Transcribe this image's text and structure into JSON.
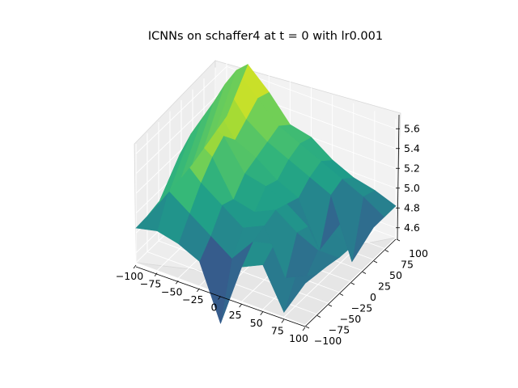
{
  "chart_data": {
    "type": "surface3d",
    "title": "ICNNs on schaffer4 at t = 0 with lr0.001",
    "xlabel": "",
    "ylabel": "",
    "zlabel": "",
    "xlim": [
      -100,
      100
    ],
    "ylim": [
      -100,
      100
    ],
    "zlim": [
      4.5,
      5.7
    ],
    "x_ticks": [
      "−100",
      "−75",
      "−50",
      "−25",
      "0",
      "25",
      "50",
      "75",
      "100"
    ],
    "y_ticks": [
      "−100",
      "−75",
      "−50",
      "−25",
      "0",
      "25",
      "50",
      "75",
      "100"
    ],
    "z_ticks": [
      "4.6",
      "4.8",
      "5.0",
      "5.2",
      "5.4",
      "5.6"
    ],
    "colormap": "viridis",
    "grid": true,
    "surface": {
      "x": [
        -100,
        -75,
        -50,
        -25,
        0,
        25,
        50,
        75,
        100
      ],
      "y": [
        -100,
        -75,
        -50,
        -25,
        0,
        25,
        50,
        75,
        100
      ],
      "z": [
        [
          4.85,
          4.9,
          4.85,
          4.75,
          4.2,
          4.85,
          4.95,
          4.55,
          4.92
        ],
        [
          4.86,
          5.2,
          5.05,
          4.9,
          4.75,
          5.0,
          5.05,
          4.8,
          4.9
        ],
        [
          4.88,
          5.45,
          5.25,
          5.1,
          4.95,
          5.05,
          4.6,
          4.7,
          4.88
        ],
        [
          4.9,
          5.55,
          5.4,
          5.05,
          5.0,
          5.1,
          4.95,
          4.85,
          4.85
        ],
        [
          4.92,
          5.6,
          5.5,
          5.2,
          5.15,
          5.05,
          4.9,
          4.95,
          4.84
        ],
        [
          4.95,
          5.65,
          5.35,
          5.25,
          5.1,
          5.0,
          4.55,
          4.9,
          4.83
        ],
        [
          5.0,
          5.72,
          5.45,
          5.3,
          5.2,
          5.1,
          5.0,
          4.4,
          4.82
        ],
        [
          5.05,
          5.75,
          5.55,
          5.35,
          5.25,
          5.15,
          5.05,
          4.95,
          4.82
        ],
        [
          5.1,
          5.7,
          5.5,
          5.25,
          5.2,
          5.05,
          4.95,
          4.9,
          4.82
        ]
      ]
    }
  }
}
